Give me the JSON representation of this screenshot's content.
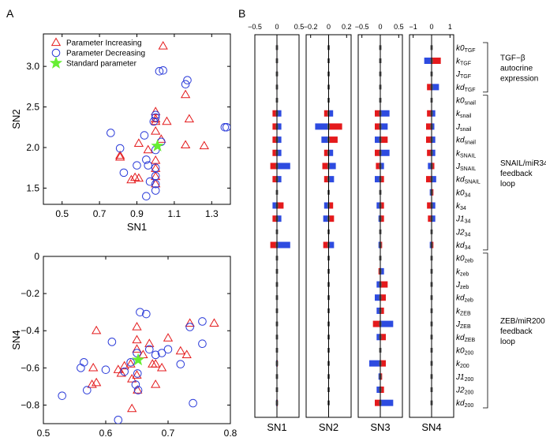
{
  "panel_labels": {
    "a": "A",
    "b": "B"
  },
  "colors": {
    "increase": "#e41a1c",
    "decrease": "#2b3bd9",
    "standard": "#66ee33",
    "increase_bar": "#e41a1c",
    "decrease_bar": "#2d4be0"
  },
  "chart_data": [
    {
      "type": "scatter",
      "title": "",
      "xlabel": "SN1",
      "ylabel": "SN2",
      "xlim": [
        0.4,
        1.4
      ],
      "ylim": [
        1.3,
        3.4
      ],
      "xticks": [
        0.5,
        0.7,
        0.9,
        1.1,
        1.3
      ],
      "xtick_labels": [
        "0.5",
        "0.7",
        "0.9",
        "1.1",
        "1.3"
      ],
      "yticks": [
        1.5,
        2.0,
        2.5,
        3.0
      ],
      "ytick_labels": [
        "1.5",
        "2.0",
        "2.5",
        "3.0"
      ],
      "legend": [
        {
          "label": "Parameter Increasing",
          "marker": "triangle",
          "color": "#e41a1c"
        },
        {
          "label": "Parameter Decreasing",
          "marker": "circle",
          "color": "#2b3bd9"
        },
        {
          "label": "Standard parameter",
          "marker": "star",
          "color": "#66ee33"
        }
      ],
      "series": [
        {
          "name": "Parameter Increasing",
          "marker": "triangle",
          "points": [
            [
              1.04,
              3.25
            ],
            [
              1.16,
              2.65
            ],
            [
              1.0,
              2.44
            ],
            [
              1.0,
              2.35
            ],
            [
              1.06,
              2.32
            ],
            [
              1.18,
              2.35
            ],
            [
              1.03,
              2.1
            ],
            [
              1.0,
              2.2
            ],
            [
              0.81,
              1.9
            ],
            [
              0.91,
              2.05
            ],
            [
              0.96,
              1.97
            ],
            [
              1.16,
              2.03
            ],
            [
              1.26,
              2.02
            ],
            [
              0.87,
              1.6
            ],
            [
              0.89,
              1.63
            ],
            [
              1.0,
              1.55
            ],
            [
              0.91,
              1.62
            ],
            [
              1.0,
              1.74
            ],
            [
              1.0,
              1.84
            ],
            [
              0.81,
              1.88
            ],
            [
              1.0,
              1.64
            ],
            [
              1.0,
              2.32
            ]
          ]
        },
        {
          "name": "Parameter Decreasing",
          "marker": "circle",
          "points": [
            [
              1.02,
              2.94
            ],
            [
              1.04,
              2.95
            ],
            [
              1.16,
              2.78
            ],
            [
              1.17,
              2.83
            ],
            [
              1.38,
              2.25
            ],
            [
              1.37,
              2.25
            ],
            [
              1.0,
              2.4
            ],
            [
              1.0,
              2.37
            ],
            [
              0.99,
              2.32
            ],
            [
              0.76,
              2.18
            ],
            [
              0.81,
              1.99
            ],
            [
              0.94,
              2.15
            ],
            [
              0.95,
              1.85
            ],
            [
              0.96,
              1.78
            ],
            [
              0.83,
              1.69
            ],
            [
              0.9,
              1.78
            ],
            [
              0.95,
              1.4
            ],
            [
              0.97,
              1.58
            ],
            [
              1.0,
              1.75
            ],
            [
              1.0,
              1.65
            ],
            [
              1.0,
              1.55
            ],
            [
              1.0,
              1.47
            ],
            [
              1.0,
              1.97
            ],
            [
              1.03,
              2.07
            ]
          ]
        },
        {
          "name": "Standard parameter",
          "marker": "star",
          "points": [
            [
              1.01,
              2.02
            ]
          ]
        }
      ]
    },
    {
      "type": "scatter",
      "title": "",
      "xlabel": "SN3",
      "ylabel": "SN4",
      "xlim": [
        0.5,
        0.8
      ],
      "ylim": [
        -0.9,
        0.0
      ],
      "xticks": [
        0.5,
        0.6,
        0.7,
        0.8
      ],
      "xtick_labels": [
        "0.5",
        "0.6",
        "0.7",
        "0.8"
      ],
      "yticks": [
        -0.8,
        -0.6,
        -0.4,
        -0.2,
        0.0
      ],
      "ytick_labels": [
        "−0.8",
        "−0.6",
        "−0.4",
        "−0.2",
        "0"
      ],
      "series": [
        {
          "name": "Parameter Increasing",
          "marker": "triangle",
          "points": [
            [
              0.585,
              -0.4
            ],
            [
              0.58,
              -0.6
            ],
            [
              0.578,
              -0.69
            ],
            [
              0.585,
              -0.68
            ],
            [
              0.62,
              -0.61
            ],
            [
              0.625,
              -0.63
            ],
            [
              0.63,
              -0.59
            ],
            [
              0.64,
              -0.58
            ],
            [
              0.642,
              -0.66
            ],
            [
              0.642,
              -0.82
            ],
            [
              0.65,
              -0.38
            ],
            [
              0.65,
              -0.45
            ],
            [
              0.65,
              -0.5
            ],
            [
              0.65,
              -0.64
            ],
            [
              0.651,
              -0.72
            ],
            [
              0.66,
              -0.53
            ],
            [
              0.67,
              -0.47
            ],
            [
              0.675,
              -0.58
            ],
            [
              0.68,
              -0.58
            ],
            [
              0.68,
              -0.69
            ],
            [
              0.69,
              -0.6
            ],
            [
              0.7,
              -0.44
            ],
            [
              0.72,
              -0.51
            ],
            [
              0.73,
              -0.53
            ],
            [
              0.735,
              -0.36
            ],
            [
              0.774,
              -0.36
            ]
          ]
        },
        {
          "name": "Parameter Decreasing",
          "marker": "circle",
          "points": [
            [
              0.53,
              -0.75
            ],
            [
              0.56,
              -0.6
            ],
            [
              0.565,
              -0.57
            ],
            [
              0.57,
              -0.72
            ],
            [
              0.6,
              -0.61
            ],
            [
              0.61,
              -0.46
            ],
            [
              0.62,
              -0.88
            ],
            [
              0.63,
              -0.62
            ],
            [
              0.64,
              -0.57
            ],
            [
              0.648,
              -0.69
            ],
            [
              0.65,
              -0.52
            ],
            [
              0.651,
              -0.63
            ],
            [
              0.652,
              -0.72
            ],
            [
              0.655,
              -0.3
            ],
            [
              0.665,
              -0.31
            ],
            [
              0.67,
              -0.5
            ],
            [
              0.68,
              -0.53
            ],
            [
              0.69,
              -0.52
            ],
            [
              0.7,
              -0.5
            ],
            [
              0.72,
              -0.58
            ],
            [
              0.735,
              -0.38
            ],
            [
              0.74,
              -0.79
            ],
            [
              0.755,
              -0.35
            ],
            [
              0.755,
              -0.47
            ]
          ]
        },
        {
          "name": "Standard parameter",
          "marker": "star",
          "points": [
            [
              0.652,
              -0.557
            ]
          ]
        }
      ]
    },
    {
      "type": "bar",
      "orientation": "horizontal",
      "title": "",
      "subplots": [
        {
          "xlabel": "SN1",
          "xlim": [
            -0.5,
            0.5
          ],
          "xticks": [
            -0.5,
            0,
            0.5
          ],
          "xtick_labels": [
            "−0.5",
            "0",
            "0.5"
          ]
        },
        {
          "xlabel": "SN2",
          "xlim": [
            -0.25,
            0.25
          ],
          "xticks": [
            -0.2,
            0,
            0.2
          ],
          "xtick_labels": [
            "−0.2",
            "0",
            "0.2"
          ]
        },
        {
          "xlabel": "SN3",
          "xlim": [
            -0.6,
            0.6
          ],
          "xticks": [
            -0.5,
            0,
            0.5
          ],
          "xtick_labels": [
            "−0.5",
            "0",
            "0.5"
          ]
        },
        {
          "xlabel": "SN4",
          "xlim": [
            -1.2,
            1.2
          ],
          "xticks": [
            -1,
            0,
            1
          ],
          "xtick_labels": [
            "−1",
            "0",
            "1"
          ]
        }
      ],
      "parameters": [
        {
          "name": "k0",
          "sub": "TGF"
        },
        {
          "name": "k",
          "sub": "TGF"
        },
        {
          "name": "J",
          "sub": "TGF"
        },
        {
          "name": "kd",
          "sub": "TGF"
        },
        {
          "name": "k0",
          "sub": "snail"
        },
        {
          "name": "k",
          "sub": "snail"
        },
        {
          "name": "J",
          "sub": "snail"
        },
        {
          "name": "kd",
          "sub": "snail"
        },
        {
          "name": "k",
          "sub": "SNAIL"
        },
        {
          "name": "J",
          "sub": "SNAIL"
        },
        {
          "name": "kd",
          "sub": "SNAIL"
        },
        {
          "name": "k0",
          "sub": "34"
        },
        {
          "name": "k",
          "sub": "34"
        },
        {
          "name": "J1",
          "sub": "34"
        },
        {
          "name": "J2",
          "sub": "34"
        },
        {
          "name": "kd",
          "sub": "34"
        },
        {
          "name": "k0",
          "sub": "zeb"
        },
        {
          "name": "k",
          "sub": "zeb"
        },
        {
          "name": "J",
          "sub": "zeb"
        },
        {
          "name": "kd",
          "sub": "zeb"
        },
        {
          "name": "k",
          "sub": "ZEB"
        },
        {
          "name": "J",
          "sub": "ZEB"
        },
        {
          "name": "kd",
          "sub": "ZEB"
        },
        {
          "name": "k0",
          "sub": "200"
        },
        {
          "name": "k",
          "sub": "200"
        },
        {
          "name": "J1",
          "sub": "200"
        },
        {
          "name": "J2",
          "sub": "200"
        },
        {
          "name": "kd",
          "sub": "200"
        }
      ],
      "groups": [
        {
          "lines": [
            "TGF−β",
            "autocrine",
            "expression"
          ],
          "start": 0,
          "end": 3
        },
        {
          "lines": [
            "SNAIL/miR34",
            "feedback",
            "loop"
          ],
          "start": 4,
          "end": 15
        },
        {
          "lines": [
            "ZEB/miR200",
            "feedback",
            "loop"
          ],
          "start": 16,
          "end": 27
        }
      ],
      "series": [
        {
          "name": "Parameter Increasing",
          "sub_values": [
            [
              0.01,
              -0.01,
              0.01,
              -0.01,
              0.0,
              -0.1,
              -0.1,
              -0.1,
              -0.1,
              -0.15,
              -0.1,
              0.0,
              0.15,
              -0.1,
              0.0,
              -0.15,
              0.0,
              0.0,
              0.0,
              0.0,
              0.0,
              0.0,
              0.0,
              0.0,
              0.02,
              0.0,
              0.0,
              0.02
            ],
            [
              0.0,
              0.0,
              0.0,
              0.0,
              0.0,
              -0.05,
              0.15,
              0.1,
              -0.05,
              -0.07,
              -0.05,
              0.0,
              0.05,
              0.06,
              0.0,
              -0.06,
              0.0,
              0.0,
              0.0,
              0.0,
              0.0,
              0.0,
              0.0,
              0.0,
              0.0,
              0.0,
              0.0,
              0.0
            ],
            [
              0.0,
              0.0,
              0.0,
              0.0,
              0.0,
              -0.15,
              -0.15,
              0.2,
              -0.15,
              -0.12,
              0.1,
              0.0,
              0.1,
              0.1,
              0.0,
              0.05,
              0.0,
              -0.05,
              0.2,
              0.15,
              0.1,
              -0.2,
              0.15,
              0.0,
              0.15,
              0.05,
              0.1,
              -0.15
            ],
            [
              0.0,
              0.5,
              0.0,
              -0.25,
              0.0,
              -0.25,
              -0.3,
              -0.3,
              -0.25,
              0.15,
              -0.3,
              0.1,
              -0.25,
              -0.2,
              0.0,
              0.1,
              0.0,
              0.0,
              0.0,
              0.0,
              0.0,
              0.0,
              0.0,
              0.0,
              0.0,
              0.0,
              0.0,
              0.0
            ]
          ]
        },
        {
          "name": "Parameter Decreasing",
          "sub_values": [
            [
              -0.01,
              0.01,
              -0.01,
              0.01,
              0.0,
              0.1,
              0.1,
              0.1,
              0.1,
              0.3,
              0.1,
              0.0,
              -0.1,
              0.1,
              0.0,
              0.3,
              0.0,
              0.0,
              0.0,
              0.0,
              0.0,
              0.0,
              0.0,
              0.0,
              -0.02,
              0.0,
              0.0,
              -0.02
            ],
            [
              0.0,
              0.0,
              0.0,
              0.0,
              0.0,
              0.05,
              -0.15,
              -0.08,
              0.05,
              0.08,
              0.06,
              0.0,
              -0.05,
              -0.06,
              0.0,
              0.06,
              0.0,
              0.0,
              0.0,
              0.0,
              0.0,
              0.0,
              0.0,
              0.0,
              0.0,
              0.0,
              0.0,
              0.0
            ],
            [
              0.0,
              0.0,
              0.0,
              0.0,
              0.0,
              0.25,
              0.2,
              -0.15,
              0.25,
              0.1,
              -0.15,
              0.0,
              -0.1,
              -0.05,
              0.0,
              -0.05,
              0.0,
              0.1,
              -0.1,
              -0.15,
              -0.1,
              0.35,
              -0.1,
              0.0,
              -0.3,
              -0.05,
              -0.1,
              0.35
            ],
            [
              0.0,
              -0.4,
              0.0,
              0.4,
              0.0,
              0.2,
              0.15,
              0.2,
              0.2,
              -0.2,
              0.25,
              -0.1,
              0.2,
              0.2,
              0.0,
              -0.1,
              0.0,
              0.0,
              0.0,
              0.0,
              0.0,
              0.0,
              0.0,
              0.0,
              0.0,
              0.0,
              0.0,
              0.0
            ]
          ]
        }
      ]
    }
  ]
}
